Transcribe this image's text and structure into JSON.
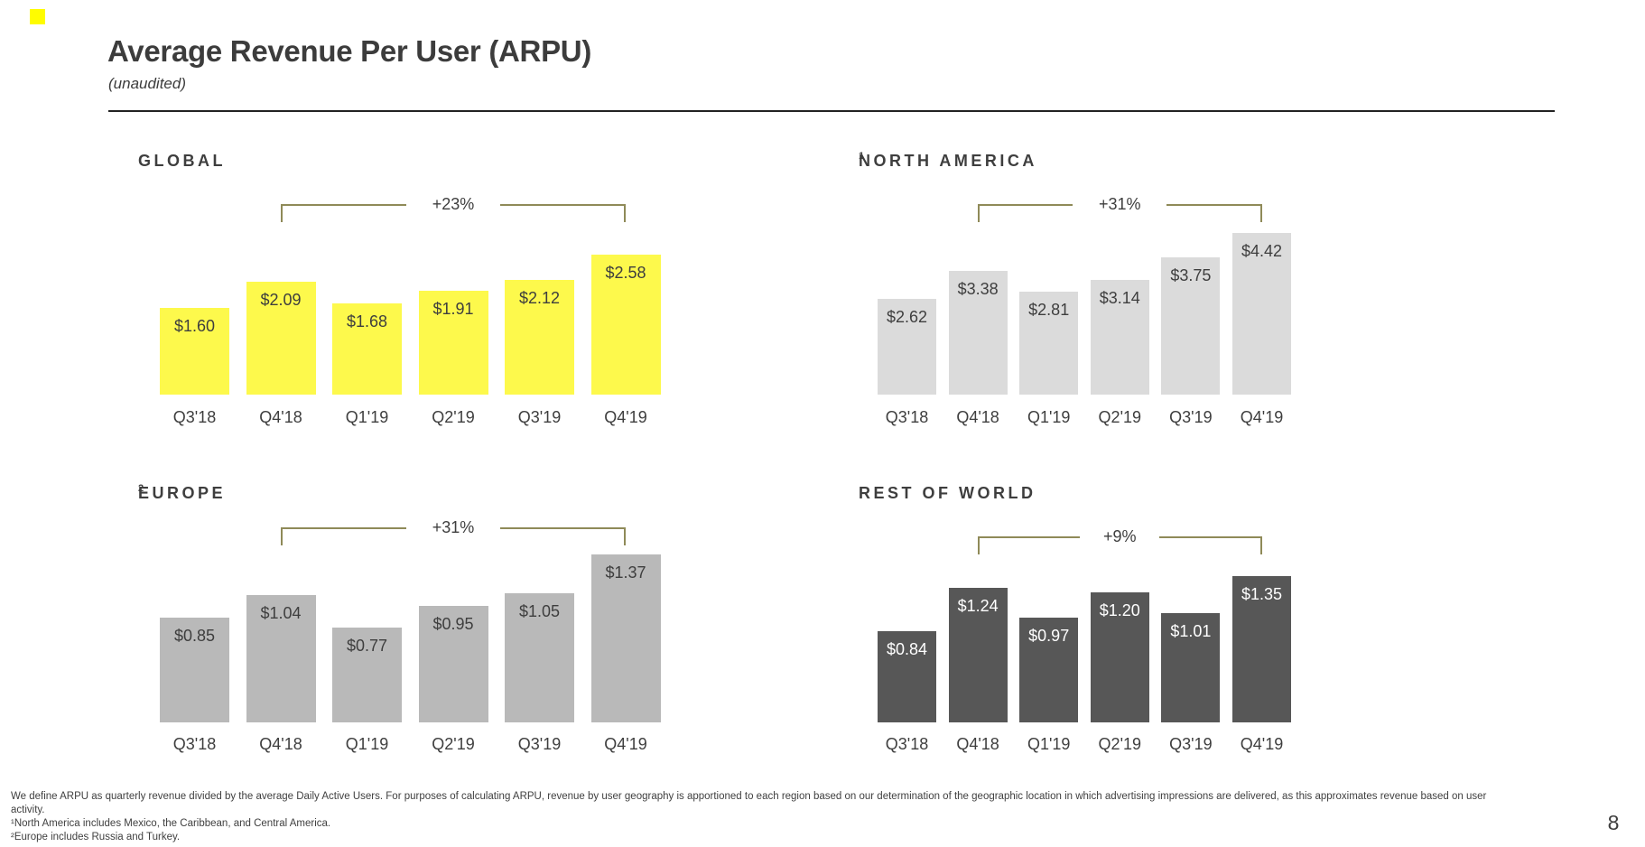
{
  "slide": {
    "title": "Average Revenue Per User (ARPU)",
    "subtitle": "(unaudited)",
    "page_number": "8",
    "brand_color": "#FFFC00",
    "bracket_color": "#8F8A58",
    "text_color": "#3E3E3E"
  },
  "footnotes": {
    "definition": "We define ARPU as quarterly revenue divided by the average Daily Active Users. For purposes of calculating ARPU, revenue by user geography is apportioned to each region based on our determination of the geographic location in which advertising impressions are delivered, as this approximates revenue based on user activity.",
    "note1": "¹North America includes Mexico, the Caribbean, and Central America.",
    "note2": "²Europe includes Russia and Turkey."
  },
  "chart_data": [
    {
      "type": "bar",
      "title": "GLOBAL",
      "superscript": "",
      "growth": {
        "label": "+23%",
        "from_category": "Q4'18",
        "to_category": "Q4'19"
      },
      "categories": [
        "Q3'18",
        "Q4'18",
        "Q1'19",
        "Q2'19",
        "Q3'19",
        "Q4'19"
      ],
      "values": [
        1.6,
        2.09,
        1.68,
        1.91,
        2.12,
        2.58
      ],
      "value_labels": [
        "$1.60",
        "$2.09",
        "$1.68",
        "$1.91",
        "$2.12",
        "$2.58"
      ],
      "bar_color": "#FDF94C",
      "value_label_color": "#3E3E3E"
    },
    {
      "type": "bar",
      "title": "NORTH AMERICA",
      "superscript": "1",
      "growth": {
        "label": "+31%",
        "from_category": "Q4'18",
        "to_category": "Q4'19"
      },
      "categories": [
        "Q3'18",
        "Q4'18",
        "Q1'19",
        "Q2'19",
        "Q3'19",
        "Q4'19"
      ],
      "values": [
        2.62,
        3.38,
        2.81,
        3.14,
        3.75,
        4.42
      ],
      "value_labels": [
        "$2.62",
        "$3.38",
        "$2.81",
        "$3.14",
        "$3.75",
        "$4.42"
      ],
      "bar_color": "#DBDBDB",
      "value_label_color": "#3E3E3E"
    },
    {
      "type": "bar",
      "title": "EUROPE",
      "superscript": "2",
      "growth": {
        "label": "+31%",
        "from_category": "Q4'18",
        "to_category": "Q4'19"
      },
      "categories": [
        "Q3'18",
        "Q4'18",
        "Q1'19",
        "Q2'19",
        "Q3'19",
        "Q4'19"
      ],
      "values": [
        0.85,
        1.04,
        0.77,
        0.95,
        1.05,
        1.37
      ],
      "value_labels": [
        "$0.85",
        "$1.04",
        "$0.77",
        "$0.95",
        "$1.05",
        "$1.37"
      ],
      "bar_color": "#B9B9B9",
      "value_label_color": "#3E3E3E"
    },
    {
      "type": "bar",
      "title": "REST OF WORLD",
      "superscript": "",
      "growth": {
        "label": "+9%",
        "from_category": "Q4'18",
        "to_category": "Q4'19"
      },
      "categories": [
        "Q3'18",
        "Q4'18",
        "Q1'19",
        "Q2'19",
        "Q3'19",
        "Q4'19"
      ],
      "values": [
        0.84,
        1.24,
        0.97,
        1.2,
        1.01,
        1.35
      ],
      "value_labels": [
        "$0.84",
        "$1.24",
        "$0.97",
        "$1.20",
        "$1.01",
        "$1.35"
      ],
      "bar_color": "#575757",
      "value_label_color": "#FFFFFF"
    }
  ]
}
